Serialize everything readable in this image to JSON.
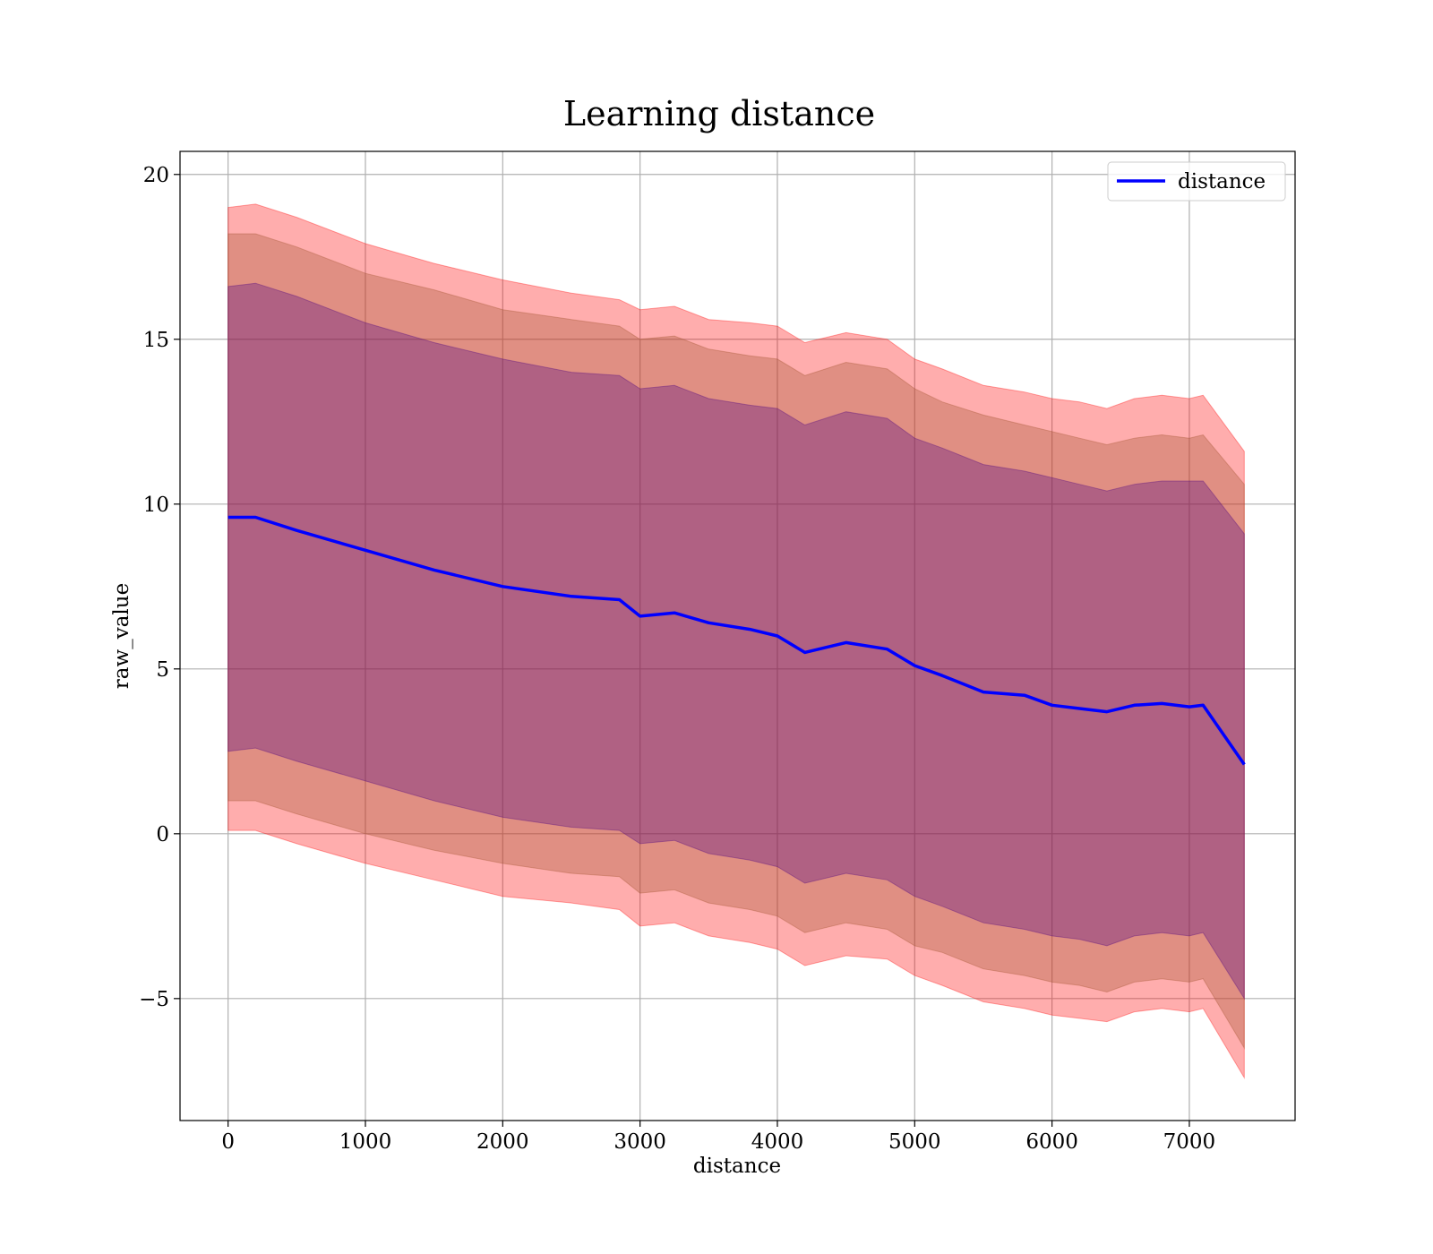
{
  "chart_data": {
    "type": "line",
    "title": "Learning distance",
    "xlabel": "distance",
    "ylabel": "raw_value",
    "xlim": [
      -350,
      7770
    ],
    "ylim": [
      -8.7,
      20.7
    ],
    "xticks": [
      0,
      1000,
      2000,
      3000,
      4000,
      5000,
      6000,
      7000
    ],
    "xtick_labels": [
      "0",
      "1000",
      "2000",
      "3000",
      "4000",
      "5000",
      "6000",
      "7000"
    ],
    "yticks": [
      -5,
      0,
      5,
      10,
      15,
      20
    ],
    "ytick_labels": [
      "−5",
      "0",
      "5",
      "10",
      "15",
      "20"
    ],
    "grid": true,
    "legend": {
      "position": "top-right",
      "entries": [
        "distance"
      ]
    },
    "colors": {
      "line": "#0000ff",
      "band_outer": "#ff0000",
      "band_middle": "#a0522d",
      "band_inner": "#4b0082",
      "grid": "#b0b0b0"
    },
    "x": [
      0,
      200,
      500,
      1000,
      1500,
      2000,
      2500,
      2850,
      3000,
      3250,
      3500,
      3800,
      4000,
      4200,
      4500,
      4800,
      5000,
      5200,
      5500,
      5800,
      6000,
      6200,
      6400,
      6600,
      6800,
      7000,
      7100,
      7400
    ],
    "series": [
      {
        "name": "distance",
        "values": [
          9.6,
          9.6,
          9.2,
          8.6,
          8.0,
          7.5,
          7.2,
          7.1,
          6.6,
          6.7,
          6.4,
          6.2,
          6.0,
          5.5,
          5.8,
          5.6,
          5.1,
          4.8,
          4.3,
          4.2,
          3.9,
          3.8,
          3.7,
          3.9,
          3.95,
          3.85,
          3.9,
          2.1
        ]
      }
    ],
    "bands": [
      {
        "label": "outer",
        "upper": [
          19.0,
          19.1,
          18.7,
          17.9,
          17.3,
          16.8,
          16.4,
          16.2,
          15.9,
          16.0,
          15.6,
          15.5,
          15.4,
          14.9,
          15.2,
          15.0,
          14.4,
          14.1,
          13.6,
          13.4,
          13.2,
          13.1,
          12.9,
          13.2,
          13.3,
          13.2,
          13.3,
          11.6
        ],
        "lower": [
          0.1,
          0.1,
          -0.3,
          -0.9,
          -1.4,
          -1.9,
          -2.1,
          -2.3,
          -2.8,
          -2.7,
          -3.1,
          -3.3,
          -3.5,
          -4.0,
          -3.7,
          -3.8,
          -4.3,
          -4.6,
          -5.1,
          -5.3,
          -5.5,
          -5.6,
          -5.7,
          -5.4,
          -5.3,
          -5.4,
          -5.3,
          -7.4
        ]
      },
      {
        "label": "middle",
        "upper": [
          18.2,
          18.2,
          17.8,
          17.0,
          16.5,
          15.9,
          15.6,
          15.4,
          15.0,
          15.1,
          14.7,
          14.5,
          14.4,
          13.9,
          14.3,
          14.1,
          13.5,
          13.1,
          12.7,
          12.4,
          12.2,
          12.0,
          11.8,
          12.0,
          12.1,
          12.0,
          12.1,
          10.6
        ],
        "lower": [
          1.0,
          1.0,
          0.6,
          0.0,
          -0.5,
          -0.9,
          -1.2,
          -1.3,
          -1.8,
          -1.7,
          -2.1,
          -2.3,
          -2.5,
          -3.0,
          -2.7,
          -2.9,
          -3.4,
          -3.6,
          -4.1,
          -4.3,
          -4.5,
          -4.6,
          -4.8,
          -4.5,
          -4.4,
          -4.5,
          -4.4,
          -6.5
        ]
      },
      {
        "label": "inner",
        "upper": [
          16.6,
          16.7,
          16.3,
          15.5,
          14.9,
          14.4,
          14.0,
          13.9,
          13.5,
          13.6,
          13.2,
          13.0,
          12.9,
          12.4,
          12.8,
          12.6,
          12.0,
          11.7,
          11.2,
          11.0,
          10.8,
          10.6,
          10.4,
          10.6,
          10.7,
          10.7,
          10.7,
          9.1
        ],
        "lower": [
          2.5,
          2.6,
          2.2,
          1.6,
          1.0,
          0.5,
          0.2,
          0.1,
          -0.3,
          -0.2,
          -0.6,
          -0.8,
          -1.0,
          -1.5,
          -1.2,
          -1.4,
          -1.9,
          -2.2,
          -2.7,
          -2.9,
          -3.1,
          -3.2,
          -3.4,
          -3.1,
          -3.0,
          -3.1,
          -3.0,
          -5.0
        ]
      }
    ]
  }
}
